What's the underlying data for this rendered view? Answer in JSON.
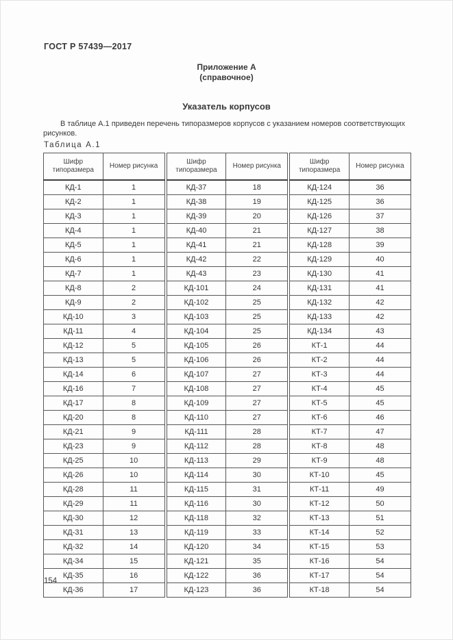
{
  "page": {
    "doc_code": "ГОСТ Р 57439—2017",
    "appendix_title": "Приложение А",
    "appendix_subtitle": "(справочное)",
    "section_title": "Указатель корпусов",
    "intro": "В таблице А.1 приведен перечень типоразмеров корпусов с указанием номеров соответствующих рисунков.",
    "table_label": "Таблица А.1",
    "page_number": "154"
  },
  "table": {
    "header": {
      "code": "Шифр типоразмера",
      "figure": "Номер рисунка"
    },
    "groups": [
      {
        "rows": [
          [
            "КД-1",
            "1"
          ],
          [
            "КД-2",
            "1"
          ],
          [
            "КД-3",
            "1"
          ],
          [
            "КД-4",
            "1"
          ],
          [
            "КД-5",
            "1"
          ],
          [
            "КД-6",
            "1"
          ],
          [
            "КД-7",
            "1"
          ],
          [
            "КД-8",
            "2"
          ],
          [
            "КД-9",
            "2"
          ],
          [
            "КД-10",
            "3"
          ],
          [
            "КД-11",
            "4"
          ],
          [
            "КД-12",
            "5"
          ],
          [
            "КД-13",
            "5"
          ],
          [
            "КД-14",
            "6"
          ],
          [
            "КД-16",
            "7"
          ],
          [
            "КД-17",
            "8"
          ],
          [
            "КД-20",
            "8"
          ],
          [
            "КД-21",
            "9"
          ],
          [
            "КД-23",
            "9"
          ],
          [
            "КД-25",
            "10"
          ],
          [
            "КД-26",
            "10"
          ],
          [
            "КД-28",
            "11"
          ],
          [
            "КД-29",
            "11"
          ],
          [
            "КД-30",
            "12"
          ],
          [
            "КД-31",
            "13"
          ],
          [
            "КД-32",
            "14"
          ],
          [
            "КД-34",
            "15"
          ],
          [
            "КД-35",
            "16"
          ],
          [
            "КД-36",
            "17"
          ]
        ]
      },
      {
        "rows": [
          [
            "КД-37",
            "18"
          ],
          [
            "КД-38",
            "19"
          ],
          [
            "КД-39",
            "20"
          ],
          [
            "КД-40",
            "21"
          ],
          [
            "КД-41",
            "21"
          ],
          [
            "КД-42",
            "22"
          ],
          [
            "КД-43",
            "23"
          ],
          [
            "КД-101",
            "24"
          ],
          [
            "КД-102",
            "25"
          ],
          [
            "КД-103",
            "25"
          ],
          [
            "КД-104",
            "25"
          ],
          [
            "КД-105",
            "26"
          ],
          [
            "КД-106",
            "26"
          ],
          [
            "КД-107",
            "27"
          ],
          [
            "КД-108",
            "27"
          ],
          [
            "КД-109",
            "27"
          ],
          [
            "КД-110",
            "27"
          ],
          [
            "КД-111",
            "28"
          ],
          [
            "КД-112",
            "28"
          ],
          [
            "КД-113",
            "29"
          ],
          [
            "КД-114",
            "30"
          ],
          [
            "КД-115",
            "31"
          ],
          [
            "КД-116",
            "30"
          ],
          [
            "КД-118",
            "32"
          ],
          [
            "КД-119",
            "33"
          ],
          [
            "КД-120",
            "34"
          ],
          [
            "КД-121",
            "35"
          ],
          [
            "КД-122",
            "36"
          ],
          [
            "КД-123",
            "36"
          ]
        ]
      },
      {
        "rows": [
          [
            "КД-124",
            "36"
          ],
          [
            "КД-125",
            "36"
          ],
          [
            "КД-126",
            "37"
          ],
          [
            "КД-127",
            "38"
          ],
          [
            "КД-128",
            "39"
          ],
          [
            "КД-129",
            "40"
          ],
          [
            "КД-130",
            "41"
          ],
          [
            "КД-131",
            "41"
          ],
          [
            "КД-132",
            "42"
          ],
          [
            "КД-133",
            "42"
          ],
          [
            "КД-134",
            "43"
          ],
          [
            "КТ-1",
            "44"
          ],
          [
            "КТ-2",
            "44"
          ],
          [
            "КТ-3",
            "44"
          ],
          [
            "КТ-4",
            "45"
          ],
          [
            "КТ-5",
            "45"
          ],
          [
            "КТ-6",
            "46"
          ],
          [
            "КТ-7",
            "47"
          ],
          [
            "КТ-8",
            "48"
          ],
          [
            "КТ-9",
            "48"
          ],
          [
            "КТ-10",
            "45"
          ],
          [
            "КТ-11",
            "49"
          ],
          [
            "КТ-12",
            "50"
          ],
          [
            "КТ-13",
            "51"
          ],
          [
            "КТ-14",
            "52"
          ],
          [
            "КТ-15",
            "53"
          ],
          [
            "КТ-16",
            "54"
          ],
          [
            "КТ-17",
            "54"
          ],
          [
            "КТ-18",
            "54"
          ]
        ]
      }
    ]
  }
}
